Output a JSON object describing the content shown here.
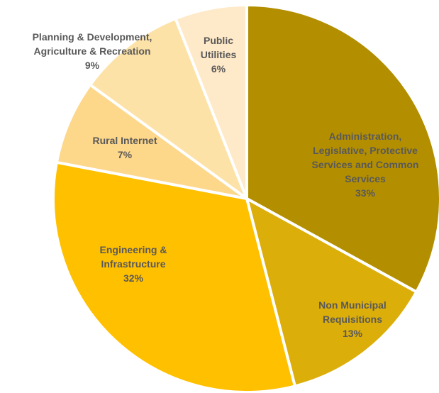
{
  "chart_data": {
    "type": "pie",
    "categories": [
      "Administration, Legislative, Protective Services and Common Services",
      "Non Municipal Requisitions",
      "Engineering & Infrastructure",
      "Rural Internet",
      "Planning & Development, Agriculture & Recreation",
      "Public Utilities"
    ],
    "values": [
      33,
      13,
      32,
      7,
      9,
      6
    ],
    "value_labels": [
      "33%",
      "13%",
      "32%",
      "7%",
      "9%",
      "6%"
    ],
    "colors": [
      "#b38f00",
      "#dcae0a",
      "#ffc000",
      "#fdd78a",
      "#fde2a8",
      "#fee9c8"
    ]
  }
}
